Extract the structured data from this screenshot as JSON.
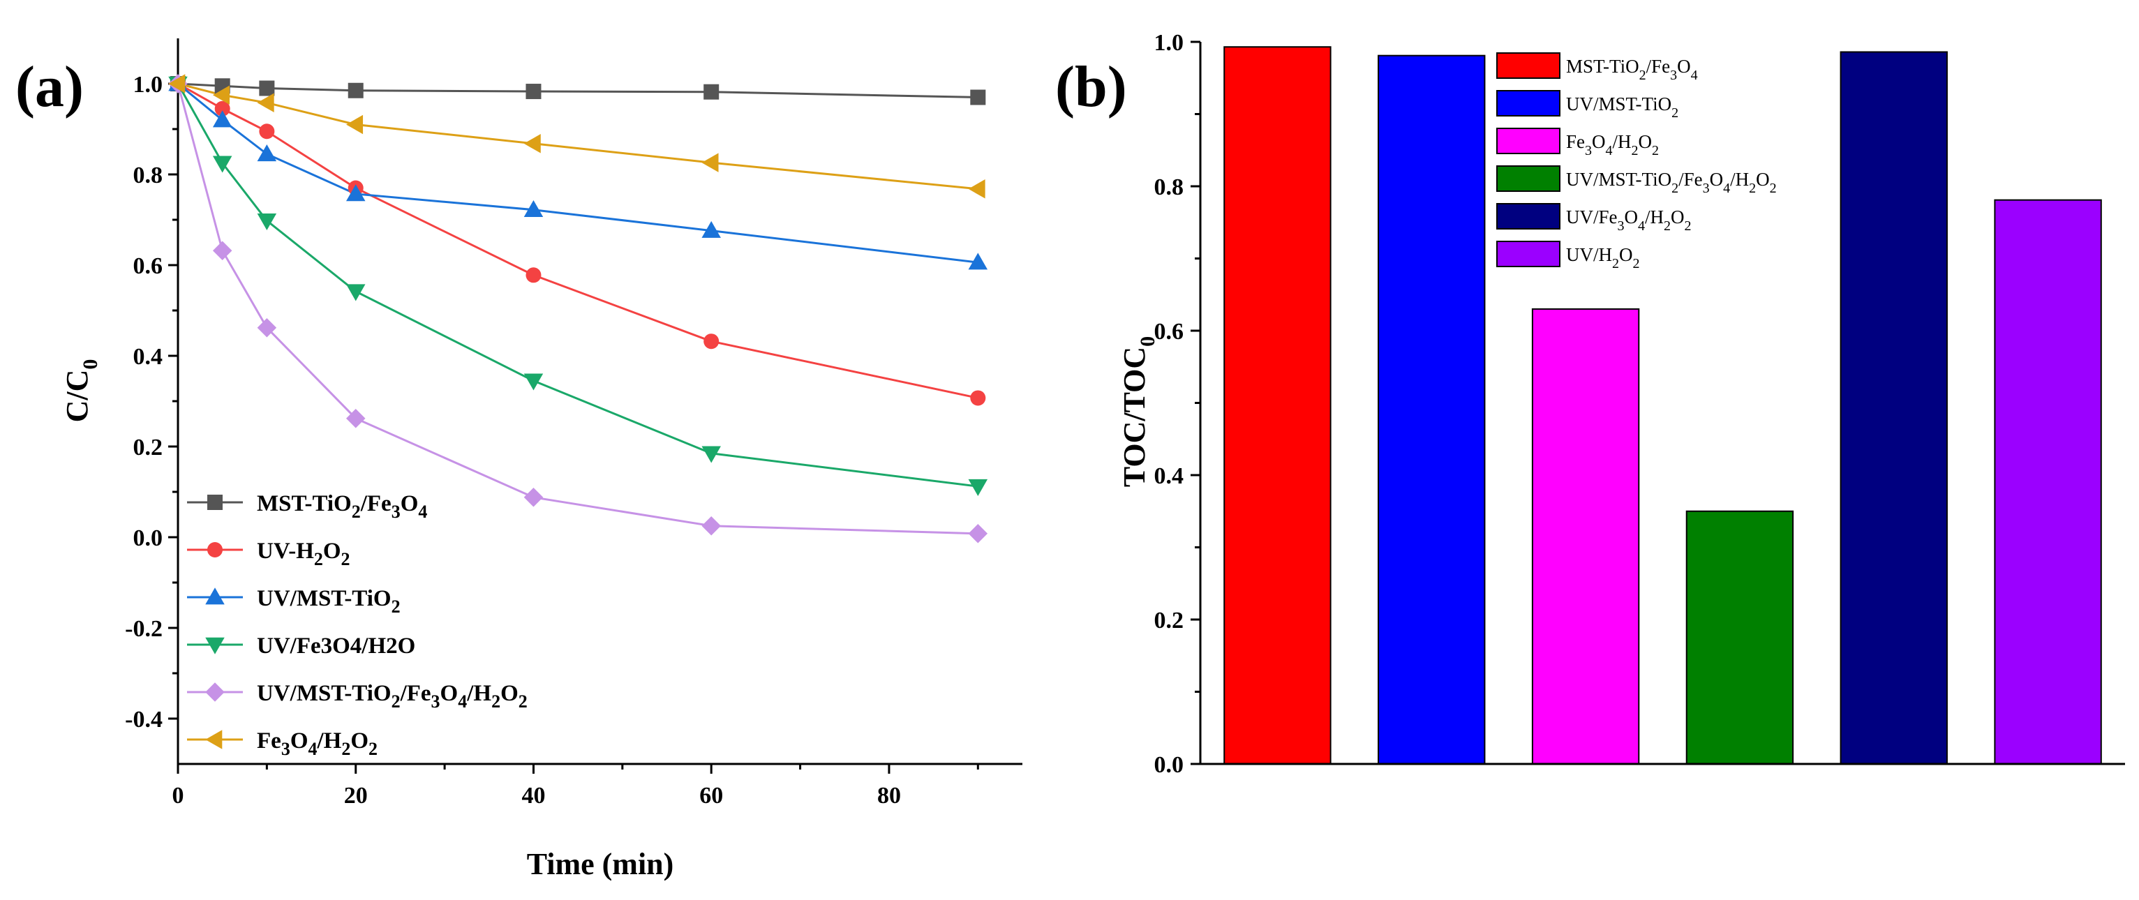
{
  "chart_data": [
    {
      "type": "line",
      "panel_label": "(a)",
      "xlabel": "Time (min)",
      "ylabel": "C/C",
      "ylabel_sub": "0",
      "xlim": [
        0,
        95
      ],
      "ylim": [
        -0.5,
        1.1
      ],
      "xticks": [
        "0",
        "20",
        "40",
        "60",
        "80"
      ],
      "xtick_values": [
        0,
        20,
        40,
        60,
        80
      ],
      "yticks": [
        "-0.4",
        "-0.2",
        "0.0",
        "0.2",
        "0.4",
        "0.6",
        "0.8",
        "1.0"
      ],
      "ytick_values": [
        -0.4,
        -0.2,
        0.0,
        0.2,
        0.4,
        0.6,
        0.8,
        1.0
      ],
      "x": [
        0,
        5,
        10,
        20,
        40,
        60,
        90
      ],
      "legend_position": "bottom-left",
      "series": [
        {
          "name": "MST-TiO2/Fe3O4",
          "label_parts": [
            {
              "t": "MST-TiO"
            },
            {
              "t": "2",
              "sub": true
            },
            {
              "t": "/Fe"
            },
            {
              "t": "3",
              "sub": true
            },
            {
              "t": "O"
            },
            {
              "t": "4",
              "sub": true
            }
          ],
          "color": "#555555",
          "marker": "square",
          "values": [
            1.0,
            0.995,
            0.99,
            0.985,
            0.983,
            0.982,
            0.97
          ]
        },
        {
          "name": "UV-H2O2",
          "label_parts": [
            {
              "t": "UV-H"
            },
            {
              "t": "2",
              "sub": true
            },
            {
              "t": "O"
            },
            {
              "t": "2",
              "sub": true
            }
          ],
          "color": "#f44242",
          "marker": "circle",
          "values": [
            1.0,
            0.945,
            0.895,
            0.77,
            0.578,
            0.432,
            0.307
          ]
        },
        {
          "name": "UV/MST-TiO2",
          "label_parts": [
            {
              "t": "UV/MST-TiO"
            },
            {
              "t": "2",
              "sub": true
            }
          ],
          "color": "#1a73d9",
          "marker": "triangle-up",
          "values": [
            1.0,
            0.92,
            0.845,
            0.757,
            0.722,
            0.676,
            0.606
          ]
        },
        {
          "name": "UV/Fe3O4/H2O",
          "label_parts": [
            {
              "t": "UV/Fe3O4/H2O"
            }
          ],
          "color": "#1aa869",
          "marker": "triangle-down",
          "values": [
            1.0,
            0.825,
            0.698,
            0.542,
            0.345,
            0.185,
            0.112
          ]
        },
        {
          "name": "UV/MST-TiO2/Fe3O4/H2O2",
          "label_parts": [
            {
              "t": "UV/MST-TiO"
            },
            {
              "t": "2",
              "sub": true
            },
            {
              "t": "/Fe"
            },
            {
              "t": "3",
              "sub": true
            },
            {
              "t": "O"
            },
            {
              "t": "4",
              "sub": true
            },
            {
              "t": "/H"
            },
            {
              "t": "2",
              "sub": true
            },
            {
              "t": "O"
            },
            {
              "t": "2",
              "sub": true
            }
          ],
          "color": "#c692e6",
          "marker": "diamond",
          "values": [
            1.0,
            0.632,
            0.462,
            0.262,
            0.088,
            0.025,
            0.008
          ]
        },
        {
          "name": "Fe3O4/H2O2",
          "label_parts": [
            {
              "t": "Fe"
            },
            {
              "t": "3",
              "sub": true
            },
            {
              "t": "O"
            },
            {
              "t": "4",
              "sub": true
            },
            {
              "t": "/H"
            },
            {
              "t": "2",
              "sub": true
            },
            {
              "t": "O"
            },
            {
              "t": "2",
              "sub": true
            }
          ],
          "color": "#dda016",
          "marker": "triangle-left",
          "values": [
            1.0,
            0.975,
            0.958,
            0.91,
            0.868,
            0.826,
            0.768
          ]
        }
      ]
    },
    {
      "type": "bar",
      "panel_label": "(b)",
      "xlabel": "",
      "ylabel": "TOC/TOC",
      "ylabel_sub": "0",
      "ylim": [
        0,
        1.0
      ],
      "yticks": [
        "0.0",
        "0.2",
        "0.4",
        "0.6",
        "0.8",
        "1.0"
      ],
      "ytick_values": [
        0.0,
        0.2,
        0.4,
        0.6,
        0.8,
        1.0
      ],
      "legend_position": "top-center",
      "categories": [
        "MST-TiO2/Fe3O4",
        "UV/MST-TiO2",
        "Fe3O4/H2O2",
        "UV/MST-TiO2/Fe3O4/H2O2",
        "UV/Fe3O4/H2O2",
        "UV/H2O2"
      ],
      "values": [
        0.993,
        0.981,
        0.63,
        0.35,
        0.986,
        0.781
      ],
      "series": [
        {
          "name": "MST-TiO2/Fe3O4",
          "label_parts": [
            {
              "t": "MST-TiO"
            },
            {
              "t": "2",
              "sub": true
            },
            {
              "t": "/Fe"
            },
            {
              "t": "3",
              "sub": true
            },
            {
              "t": "O"
            },
            {
              "t": "4",
              "sub": true
            }
          ],
          "color": "#ff0000",
          "value": 0.993
        },
        {
          "name": "UV/MST-TiO2",
          "label_parts": [
            {
              "t": "UV/MST-TiO"
            },
            {
              "t": "2",
              "sub": true
            }
          ],
          "color": "#0000ff",
          "value": 0.981
        },
        {
          "name": "Fe3O4/H2O2",
          "label_parts": [
            {
              "t": "Fe"
            },
            {
              "t": "3",
              "sub": true
            },
            {
              "t": "O"
            },
            {
              "t": "4",
              "sub": true
            },
            {
              "t": "/H"
            },
            {
              "t": "2",
              "sub": true
            },
            {
              "t": "O"
            },
            {
              "t": "2",
              "sub": true
            }
          ],
          "color": "#ff00ff",
          "value": 0.63
        },
        {
          "name": "UV/MST-TiO2/Fe3O4/H2O2",
          "label_parts": [
            {
              "t": "UV/MST-TiO"
            },
            {
              "t": "2",
              "sub": true
            },
            {
              "t": "/Fe"
            },
            {
              "t": "3",
              "sub": true
            },
            {
              "t": "O"
            },
            {
              "t": "4",
              "sub": true
            },
            {
              "t": "/H"
            },
            {
              "t": "2",
              "sub": true
            },
            {
              "t": "O"
            },
            {
              "t": "2",
              "sub": true
            }
          ],
          "color": "#008000",
          "value": 0.35
        },
        {
          "name": "UV/Fe3O4/H2O2",
          "label_parts": [
            {
              "t": "UV/Fe"
            },
            {
              "t": "3",
              "sub": true
            },
            {
              "t": "O"
            },
            {
              "t": "4",
              "sub": true
            },
            {
              "t": "/H"
            },
            {
              "t": "2",
              "sub": true
            },
            {
              "t": "O"
            },
            {
              "t": "2",
              "sub": true
            }
          ],
          "color": "#000080",
          "value": 0.986
        },
        {
          "name": "UV/H2O2",
          "label_parts": [
            {
              "t": "UV/H"
            },
            {
              "t": "2",
              "sub": true
            },
            {
              "t": "O"
            },
            {
              "t": "2",
              "sub": true
            }
          ],
          "color": "#9b00ff",
          "value": 0.781
        }
      ]
    }
  ]
}
